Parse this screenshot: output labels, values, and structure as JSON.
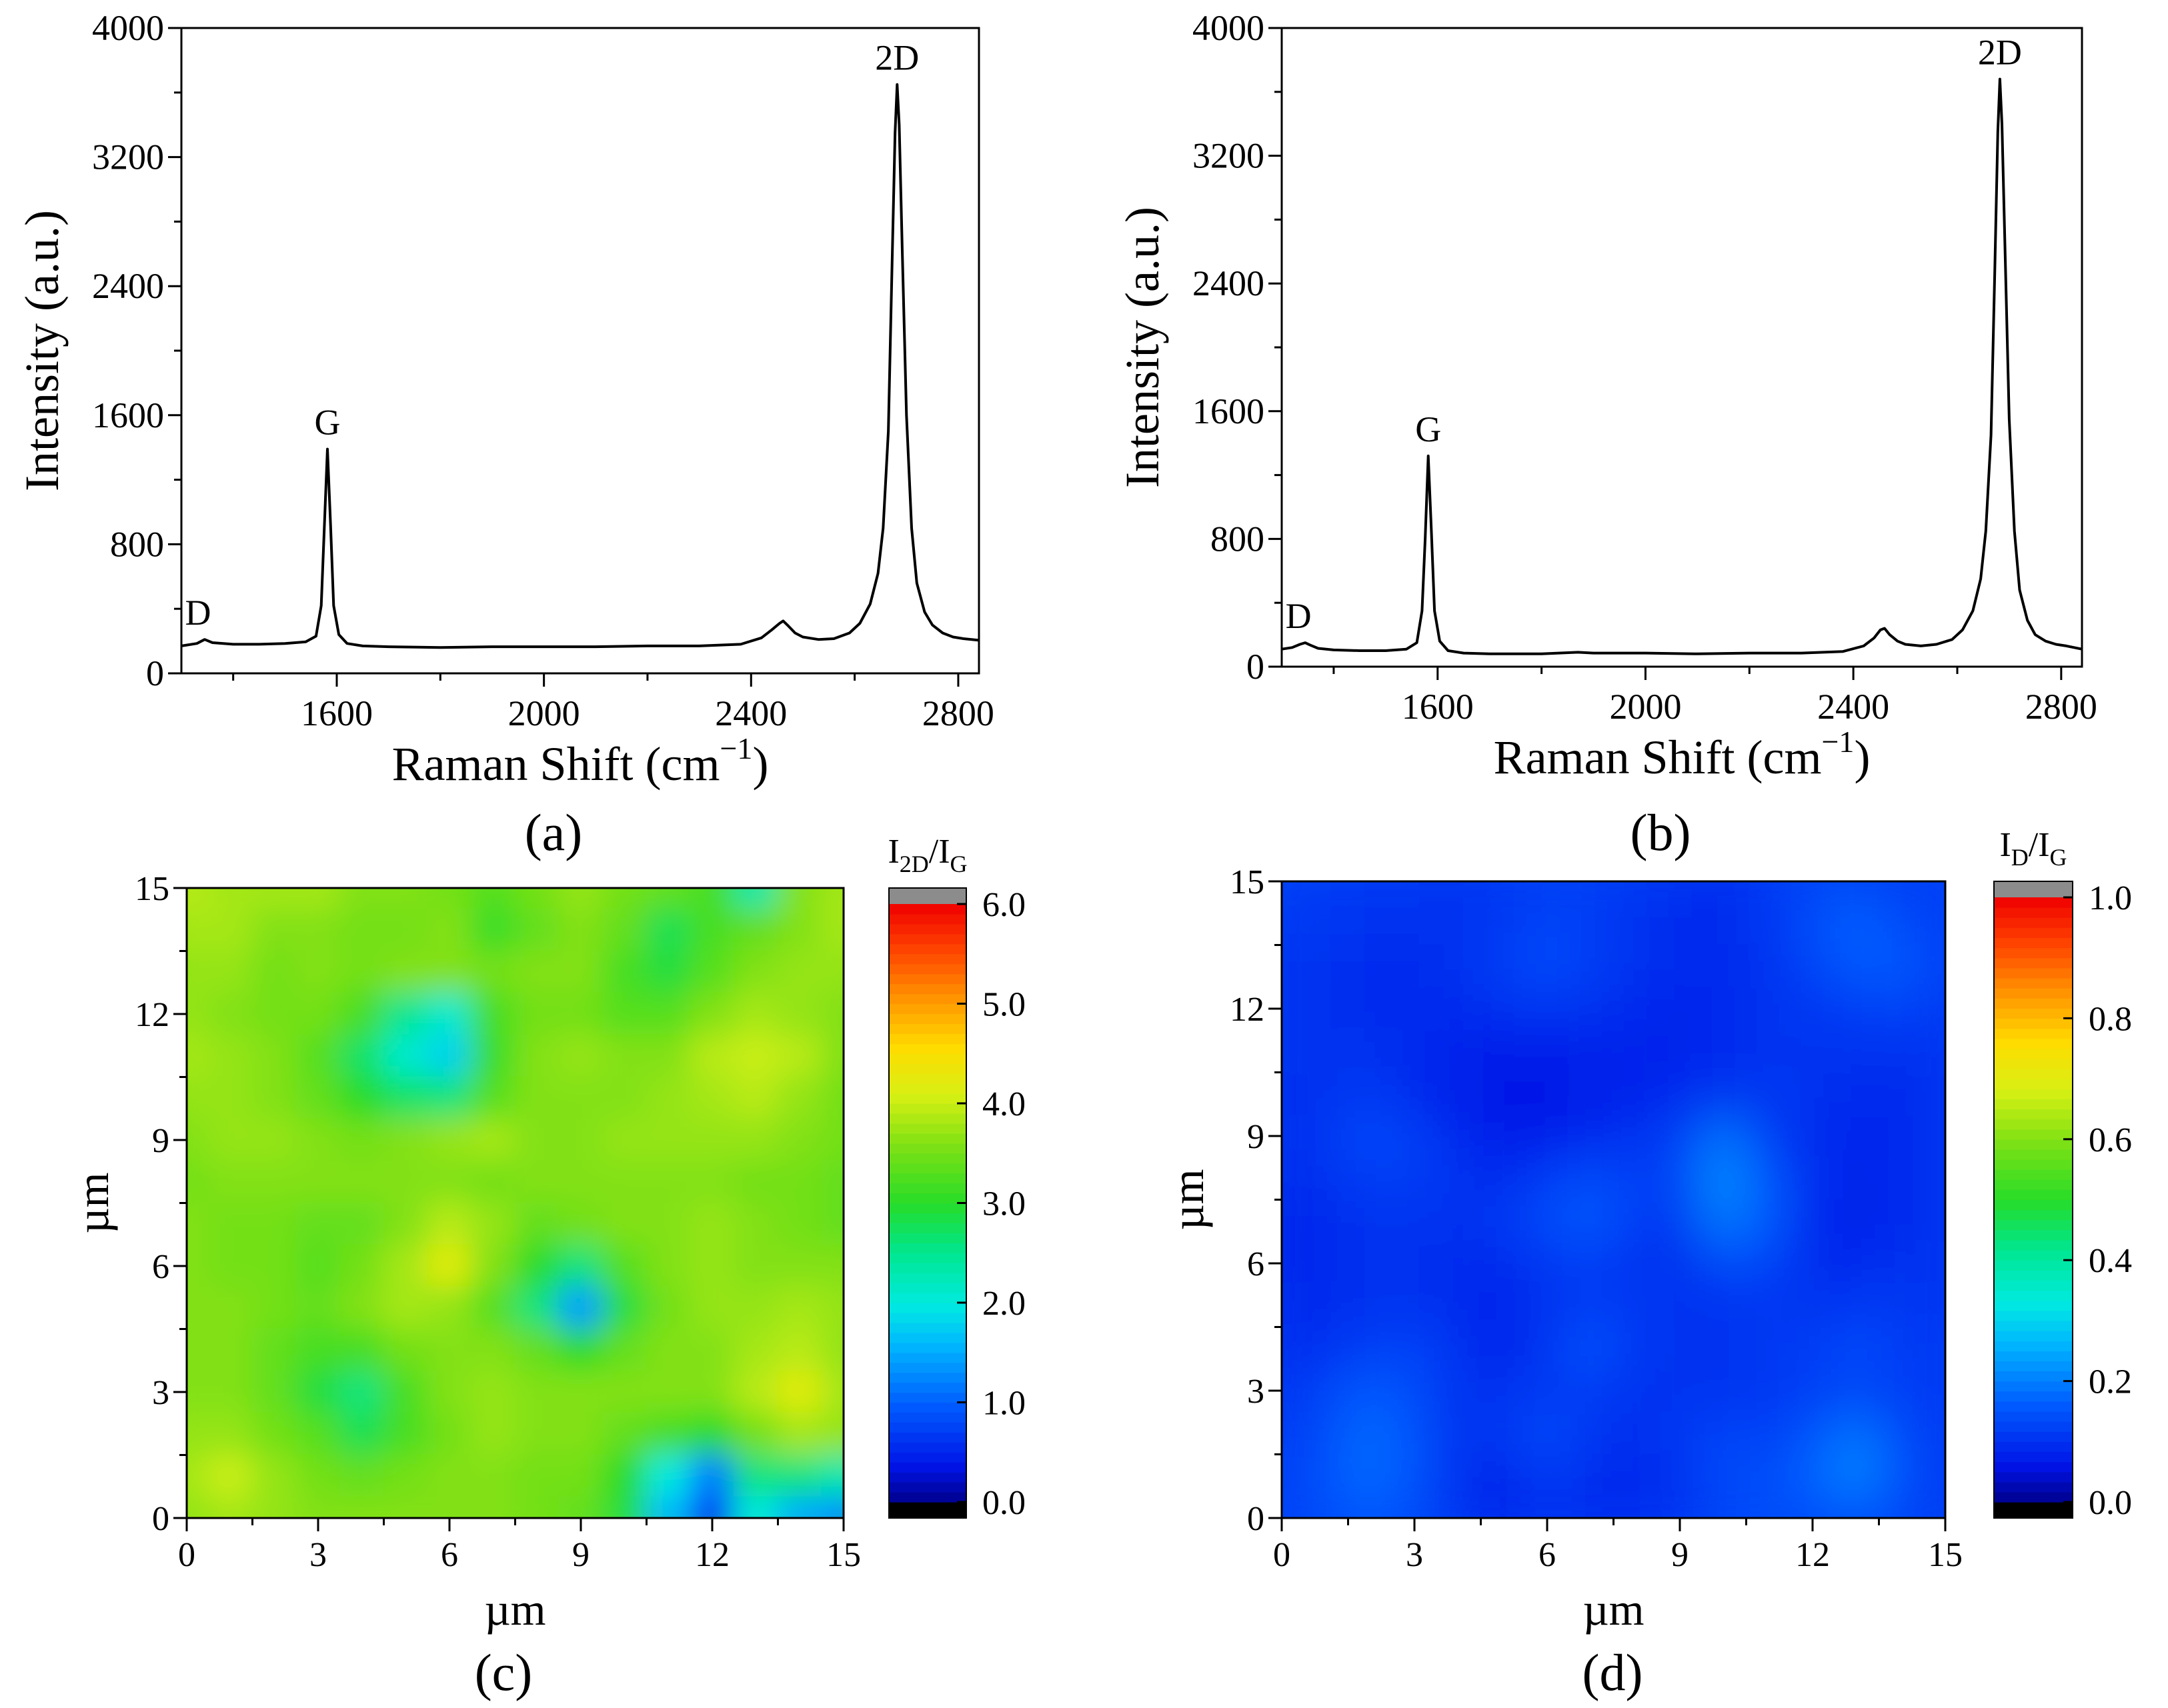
{
  "panel_labels": [
    "(a)",
    "(b)",
    "(c)",
    "(d)"
  ],
  "chart_data": [
    {
      "type": "line",
      "panel": "(a)",
      "xlabel": "Raman Shift (cm",
      "xlabel_sup": "−1",
      "xlabel_tail": ")",
      "ylabel": "Intensity (a.u.)",
      "xlim": [
        1300,
        2840
      ],
      "ylim": [
        0,
        4000
      ],
      "xticks": [
        1600,
        2000,
        2400,
        2800
      ],
      "xtick_labels": [
        "1600",
        "2000",
        "2400",
        "2800"
      ],
      "yticks": [
        0,
        800,
        1600,
        2400,
        3200,
        4000
      ],
      "ytick_labels": [
        "0",
        "800",
        "1600",
        "2400",
        "3200",
        "4000"
      ],
      "peaks": [
        {
          "label": "D",
          "x": 1345,
          "y": 210
        },
        {
          "label": "G",
          "x": 1582,
          "y": 1390
        },
        {
          "label": "2D",
          "x": 2682,
          "y": 3650
        }
      ],
      "series": [
        {
          "x": [
            1300,
            1330,
            1345,
            1360,
            1400,
            1450,
            1500,
            1540,
            1560,
            1570,
            1576,
            1582,
            1588,
            1594,
            1604,
            1620,
            1650,
            1700,
            1800,
            1900,
            2000,
            2100,
            2200,
            2300,
            2380,
            2420,
            2440,
            2455,
            2462,
            2470,
            2485,
            2500,
            2530,
            2560,
            2590,
            2610,
            2630,
            2645,
            2655,
            2665,
            2672,
            2678,
            2682,
            2686,
            2692,
            2700,
            2710,
            2720,
            2735,
            2750,
            2770,
            2790,
            2810,
            2840
          ],
          "y": [
            170,
            185,
            210,
            190,
            180,
            180,
            185,
            195,
            230,
            420,
            900,
            1390,
            920,
            420,
            240,
            185,
            170,
            165,
            160,
            165,
            165,
            165,
            170,
            170,
            180,
            220,
            270,
            310,
            325,
            300,
            250,
            225,
            210,
            215,
            250,
            310,
            430,
            620,
            900,
            1500,
            2500,
            3350,
            3650,
            3400,
            2600,
            1600,
            900,
            560,
            380,
            300,
            250,
            225,
            215,
            205
          ]
        }
      ]
    },
    {
      "type": "line",
      "panel": "(b)",
      "xlabel": "Raman Shift (cm",
      "xlabel_sup": "−1",
      "xlabel_tail": ")",
      "ylabel": "Intensity (a.u.)",
      "xlim": [
        1300,
        2840
      ],
      "ylim": [
        0,
        4000
      ],
      "xticks": [
        1600,
        2000,
        2400,
        2800
      ],
      "xtick_labels": [
        "1600",
        "2000",
        "2400",
        "2800"
      ],
      "yticks": [
        0,
        800,
        1600,
        2400,
        3200,
        4000
      ],
      "ytick_labels": [
        "0",
        "800",
        "1600",
        "2400",
        "3200",
        "4000"
      ],
      "peaks": [
        {
          "label": "D",
          "x": 1345,
          "y": 150
        },
        {
          "label": "G",
          "x": 1582,
          "y": 1320
        },
        {
          "label": "2D",
          "x": 2682,
          "y": 3680
        }
      ],
      "series": [
        {
          "x": [
            1300,
            1320,
            1335,
            1345,
            1355,
            1370,
            1400,
            1450,
            1500,
            1540,
            1560,
            1570,
            1576,
            1582,
            1588,
            1594,
            1604,
            1620,
            1650,
            1700,
            1800,
            1870,
            1900,
            2000,
            2100,
            2200,
            2300,
            2380,
            2420,
            2440,
            2452,
            2460,
            2470,
            2485,
            2500,
            2530,
            2560,
            2590,
            2610,
            2630,
            2645,
            2655,
            2665,
            2672,
            2678,
            2682,
            2686,
            2692,
            2700,
            2710,
            2720,
            2735,
            2750,
            2770,
            2790,
            2810,
            2840
          ],
          "y": [
            110,
            120,
            140,
            150,
            135,
            115,
            105,
            100,
            100,
            110,
            150,
            350,
            800,
            1320,
            850,
            350,
            160,
            100,
            85,
            80,
            80,
            90,
            85,
            85,
            80,
            85,
            85,
            95,
            130,
            180,
            230,
            240,
            200,
            160,
            140,
            130,
            140,
            170,
            230,
            350,
            550,
            850,
            1450,
            2450,
            3350,
            3680,
            3400,
            2600,
            1550,
            850,
            480,
            290,
            200,
            160,
            140,
            130,
            110
          ]
        }
      ]
    },
    {
      "type": "heatmap",
      "panel": "(c)",
      "xlabel": "µm",
      "ylabel": "µm",
      "xlim": [
        0,
        15
      ],
      "ylim": [
        0,
        15
      ],
      "xticks": [
        0,
        3,
        6,
        9,
        12,
        15
      ],
      "xtick_labels": [
        "0",
        "3",
        "6",
        "9",
        "12",
        "15"
      ],
      "yticks": [
        0,
        3,
        6,
        9,
        12,
        15
      ],
      "ytick_labels": [
        "0",
        "3",
        "6",
        "9",
        "12",
        "15"
      ],
      "colorbar_title_base": "I",
      "colorbar_title_sub1": "2D",
      "colorbar_title_mid": "/I",
      "colorbar_title_sub2": "G",
      "colorbar_range": [
        0,
        6
      ],
      "colorbar_ticks": [
        0,
        1,
        2,
        3,
        4,
        5,
        6
      ],
      "colorbar_tick_labels": [
        "0.0",
        "1.0",
        "2.0",
        "3.0",
        "4.0",
        "5.0",
        "6.0"
      ],
      "grid_step_um": 1,
      "values": [
        [
          3.9,
          3.8,
          3.8,
          3.8,
          3.6,
          3.6,
          3.5,
          3.3,
          3.5,
          3.7,
          3.5,
          3.4,
          3.2,
          2.3,
          3.6,
          3.8
        ],
        [
          3.8,
          3.8,
          3.6,
          3.6,
          3.5,
          3.5,
          3.6,
          3.1,
          3.4,
          3.6,
          3.4,
          2.8,
          3.2,
          3.4,
          3.6,
          3.8
        ],
        [
          3.7,
          3.7,
          3.5,
          3.6,
          3.5,
          3.6,
          3.6,
          3.5,
          3.6,
          3.6,
          3.2,
          2.9,
          3.3,
          3.6,
          3.7,
          3.7
        ],
        [
          3.7,
          3.6,
          3.5,
          3.5,
          3.2,
          2.5,
          2.1,
          3.2,
          3.5,
          3.5,
          3.3,
          3.3,
          3.6,
          3.8,
          3.7,
          3.6
        ],
        [
          3.8,
          3.7,
          3.6,
          3.3,
          2.7,
          2.1,
          1.8,
          3.1,
          3.6,
          3.7,
          3.6,
          3.6,
          3.9,
          4.0,
          3.9,
          3.6
        ],
        [
          3.7,
          3.7,
          3.6,
          3.4,
          3.0,
          2.7,
          2.6,
          3.3,
          3.6,
          3.6,
          3.6,
          3.7,
          3.8,
          3.9,
          3.7,
          3.5
        ],
        [
          3.6,
          3.7,
          3.7,
          3.6,
          3.5,
          3.6,
          3.7,
          3.8,
          3.6,
          3.6,
          3.7,
          3.7,
          3.7,
          3.7,
          3.6,
          3.5
        ],
        [
          3.5,
          3.6,
          3.6,
          3.6,
          3.6,
          3.6,
          3.6,
          3.5,
          3.6,
          3.6,
          3.6,
          3.6,
          3.6,
          3.5,
          3.5,
          3.4
        ],
        [
          3.6,
          3.5,
          3.5,
          3.4,
          3.4,
          3.6,
          3.9,
          3.7,
          3.4,
          3.5,
          3.6,
          3.6,
          3.7,
          3.6,
          3.5,
          3.4
        ],
        [
          3.6,
          3.5,
          3.5,
          3.3,
          3.5,
          3.8,
          4.2,
          3.6,
          3.0,
          2.6,
          3.3,
          3.6,
          3.7,
          3.6,
          3.6,
          3.6
        ],
        [
          3.6,
          3.6,
          3.5,
          3.4,
          3.6,
          3.8,
          3.7,
          3.3,
          2.6,
          1.4,
          2.9,
          3.5,
          3.7,
          3.7,
          3.8,
          3.7
        ],
        [
          3.6,
          3.6,
          3.4,
          3.2,
          3.2,
          3.5,
          3.6,
          3.6,
          3.4,
          3.0,
          3.4,
          3.6,
          3.6,
          3.8,
          3.9,
          3.7
        ],
        [
          3.6,
          3.6,
          3.4,
          2.9,
          2.6,
          3.2,
          3.6,
          3.7,
          3.6,
          3.6,
          3.6,
          3.6,
          3.6,
          3.9,
          4.2,
          3.8
        ],
        [
          3.7,
          3.7,
          3.5,
          3.3,
          2.8,
          3.2,
          3.5,
          3.7,
          3.6,
          3.6,
          3.4,
          3.2,
          3.0,
          3.5,
          3.8,
          3.7
        ],
        [
          3.8,
          4.0,
          3.7,
          3.5,
          3.4,
          3.5,
          3.6,
          3.6,
          3.5,
          3.5,
          3.0,
          2.0,
          1.2,
          2.6,
          2.6,
          2.3
        ],
        [
          3.7,
          3.8,
          3.7,
          3.6,
          3.6,
          3.6,
          3.6,
          3.6,
          3.5,
          3.4,
          2.9,
          1.6,
          0.7,
          2.0,
          1.5,
          1.3
        ]
      ]
    },
    {
      "type": "heatmap",
      "panel": "(d)",
      "xlabel": "µm",
      "ylabel": "µm",
      "xlim": [
        0,
        15
      ],
      "ylim": [
        0,
        15
      ],
      "xticks": [
        0,
        3,
        6,
        9,
        12,
        15
      ],
      "xtick_labels": [
        "0",
        "3",
        "6",
        "9",
        "12",
        "15"
      ],
      "yticks": [
        0,
        3,
        6,
        9,
        12,
        15
      ],
      "ytick_labels": [
        "0",
        "3",
        "6",
        "9",
        "12",
        "15"
      ],
      "colorbar_title_base": "I",
      "colorbar_title_sub1": "D",
      "colorbar_title_mid": "/I",
      "colorbar_title_sub2": "G",
      "colorbar_range": [
        0,
        1
      ],
      "colorbar_ticks": [
        0,
        0.2,
        0.4,
        0.6,
        0.8,
        1.0
      ],
      "colorbar_tick_labels": [
        "0.0",
        "0.2",
        "0.4",
        "0.6",
        "0.8",
        "1.0"
      ],
      "grid_step_um": 1,
      "values": [
        [
          0.12,
          0.12,
          0.11,
          0.11,
          0.1,
          0.11,
          0.12,
          0.12,
          0.11,
          0.1,
          0.09,
          0.11,
          0.13,
          0.13,
          0.12,
          0.12
        ],
        [
          0.11,
          0.11,
          0.1,
          0.1,
          0.1,
          0.11,
          0.13,
          0.12,
          0.1,
          0.09,
          0.09,
          0.11,
          0.14,
          0.17,
          0.14,
          0.12
        ],
        [
          0.1,
          0.1,
          0.09,
          0.09,
          0.1,
          0.12,
          0.14,
          0.12,
          0.1,
          0.09,
          0.09,
          0.1,
          0.13,
          0.16,
          0.16,
          0.12
        ],
        [
          0.1,
          0.1,
          0.09,
          0.09,
          0.09,
          0.1,
          0.11,
          0.1,
          0.09,
          0.08,
          0.09,
          0.1,
          0.11,
          0.12,
          0.13,
          0.11
        ],
        [
          0.1,
          0.1,
          0.1,
          0.09,
          0.08,
          0.07,
          0.07,
          0.08,
          0.08,
          0.08,
          0.09,
          0.1,
          0.1,
          0.1,
          0.1,
          0.1
        ],
        [
          0.09,
          0.1,
          0.11,
          0.09,
          0.07,
          0.06,
          0.06,
          0.07,
          0.08,
          0.09,
          0.1,
          0.11,
          0.1,
          0.09,
          0.09,
          0.1
        ],
        [
          0.09,
          0.11,
          0.14,
          0.12,
          0.09,
          0.07,
          0.07,
          0.09,
          0.1,
          0.12,
          0.19,
          0.12,
          0.09,
          0.08,
          0.09,
          0.1
        ],
        [
          0.09,
          0.1,
          0.12,
          0.12,
          0.1,
          0.09,
          0.12,
          0.14,
          0.12,
          0.13,
          0.22,
          0.15,
          0.1,
          0.08,
          0.09,
          0.1
        ],
        [
          0.08,
          0.09,
          0.1,
          0.1,
          0.1,
          0.11,
          0.14,
          0.16,
          0.12,
          0.11,
          0.2,
          0.16,
          0.09,
          0.07,
          0.09,
          0.1
        ],
        [
          0.08,
          0.09,
          0.1,
          0.1,
          0.09,
          0.09,
          0.11,
          0.12,
          0.1,
          0.1,
          0.14,
          0.13,
          0.09,
          0.09,
          0.1,
          0.1
        ],
        [
          0.09,
          0.09,
          0.1,
          0.1,
          0.09,
          0.08,
          0.1,
          0.12,
          0.11,
          0.1,
          0.1,
          0.11,
          0.1,
          0.11,
          0.11,
          0.1
        ],
        [
          0.09,
          0.1,
          0.12,
          0.13,
          0.1,
          0.08,
          0.11,
          0.15,
          0.11,
          0.1,
          0.1,
          0.11,
          0.12,
          0.14,
          0.12,
          0.11
        ],
        [
          0.1,
          0.13,
          0.16,
          0.14,
          0.1,
          0.1,
          0.11,
          0.12,
          0.1,
          0.1,
          0.1,
          0.11,
          0.12,
          0.13,
          0.12,
          0.11
        ],
        [
          0.11,
          0.14,
          0.18,
          0.15,
          0.1,
          0.11,
          0.14,
          0.11,
          0.09,
          0.11,
          0.13,
          0.12,
          0.15,
          0.19,
          0.14,
          0.11
        ],
        [
          0.12,
          0.15,
          0.18,
          0.15,
          0.1,
          0.08,
          0.12,
          0.09,
          0.09,
          0.1,
          0.14,
          0.14,
          0.17,
          0.21,
          0.15,
          0.11
        ],
        [
          0.12,
          0.14,
          0.16,
          0.14,
          0.1,
          0.08,
          0.1,
          0.09,
          0.09,
          0.1,
          0.13,
          0.14,
          0.14,
          0.15,
          0.13,
          0.11
        ]
      ]
    }
  ]
}
